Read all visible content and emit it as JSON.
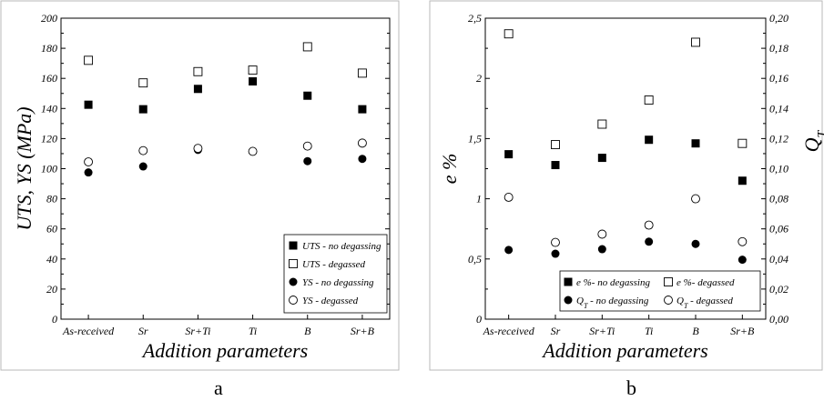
{
  "chart_data": [
    {
      "panel": "a",
      "type": "scatter",
      "categories": [
        "As-received",
        "Sr",
        "Sr+Ti",
        "Ti",
        "B",
        "Sr+B"
      ],
      "xlabel": "Addition parameters",
      "ylabel": "UTS, YS (MPa)",
      "ylim": [
        0,
        200
      ],
      "yticks": [
        0,
        20,
        40,
        60,
        80,
        100,
        120,
        140,
        160,
        180,
        200
      ],
      "grid": false,
      "legend_placement": "bottom-right",
      "series": [
        {
          "name": "UTS - no degassing",
          "marker": "filled-square",
          "values": [
            142.5,
            139.5,
            153,
            158,
            148.5,
            139.5
          ]
        },
        {
          "name": "UTS - degassed",
          "marker": "open-square",
          "values": [
            172,
            157,
            164.5,
            165.5,
            181,
            163.5
          ]
        },
        {
          "name": "YS - no degassing",
          "marker": "filled-circle",
          "values": [
            97.5,
            101.5,
            112.5,
            111.5,
            105,
            106.5
          ]
        },
        {
          "name": "YS - degassed",
          "marker": "open-circle",
          "values": [
            104.5,
            112,
            113.5,
            111.5,
            115,
            117
          ]
        }
      ]
    },
    {
      "panel": "b",
      "type": "scatter",
      "categories": [
        "As-received",
        "Sr",
        "Sr+Ti",
        "Ti",
        "B",
        "Sr+B"
      ],
      "xlabel": "Addition parameters",
      "ylabel": "e %",
      "y2label": "QT",
      "ylim": [
        0,
        2.5
      ],
      "yticks": [
        "0",
        "0,5",
        "1",
        "1,5",
        "2",
        "2,5"
      ],
      "y2lim": [
        0,
        0.2
      ],
      "y2ticks": [
        "0,00",
        "0,02",
        "0,04",
        "0,06",
        "0,08",
        "0,10",
        "0,12",
        "0,14",
        "0,16",
        "0,18",
        "0,20"
      ],
      "grid": false,
      "legend_placement": "bottom",
      "series": [
        {
          "name": "e %- no degassing",
          "axis": "left",
          "marker": "filled-square",
          "values": [
            1.37,
            1.28,
            1.34,
            1.49,
            1.46,
            1.15
          ]
        },
        {
          "name": "e %- degassed",
          "axis": "left",
          "marker": "open-square",
          "values": [
            2.37,
            1.45,
            1.62,
            1.82,
            2.3,
            1.46
          ]
        },
        {
          "name": "QT - no degassing",
          "axis": "right",
          "marker": "filled-circle",
          "values": [
            0.046,
            0.0435,
            0.0465,
            0.0515,
            0.05,
            0.0395
          ]
        },
        {
          "name": "QT - degassed",
          "axis": "right",
          "marker": "open-circle",
          "values": [
            0.081,
            0.051,
            0.0565,
            0.0625,
            0.08,
            0.0515
          ]
        }
      ]
    }
  ],
  "panel_labels": {
    "a": "a",
    "b": "b"
  }
}
